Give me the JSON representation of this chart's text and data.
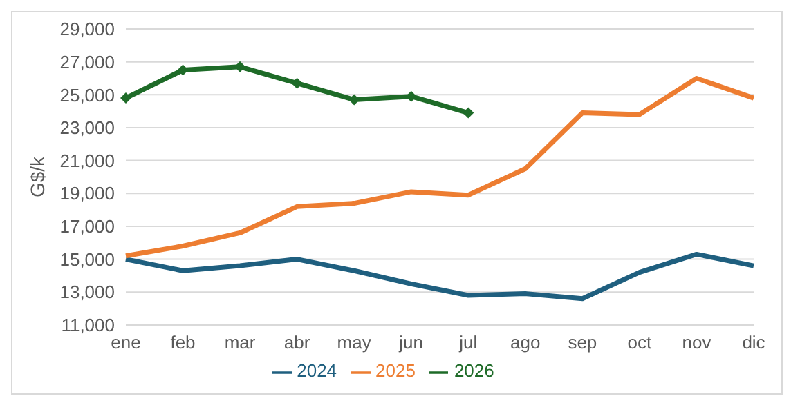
{
  "chart_data": {
    "type": "line",
    "ylabel": "G$/k",
    "categories": [
      "ene",
      "feb",
      "mar",
      "abr",
      "may",
      "jun",
      "jul",
      "ago",
      "sep",
      "oct",
      "nov",
      "dic"
    ],
    "series": [
      {
        "name": "2024",
        "color": "#1f5f7f",
        "values": [
          15000,
          14300,
          14600,
          15000,
          14300,
          13500,
          12800,
          12900,
          12600,
          14200,
          15300,
          14600
        ]
      },
      {
        "name": "2025",
        "color": "#ed7d31",
        "values": [
          15200,
          15800,
          16600,
          18200,
          18400,
          19100,
          18900,
          20500,
          23900,
          23800,
          26000,
          24800
        ]
      },
      {
        "name": "2026",
        "color": "#1e6b28",
        "marker": "diamond",
        "values": [
          24800,
          26500,
          26700,
          25700,
          24700,
          24900,
          23900,
          null,
          null,
          null,
          null,
          null
        ]
      }
    ],
    "ylim": [
      11000,
      29000
    ],
    "yticks": [
      {
        "value": 11000,
        "label": "11,000"
      },
      {
        "value": 13000,
        "label": "13,000"
      },
      {
        "value": 15000,
        "label": "15,000"
      },
      {
        "value": 17000,
        "label": "17,000"
      },
      {
        "value": 19000,
        "label": "19,000"
      },
      {
        "value": 21000,
        "label": "21,000"
      },
      {
        "value": 23000,
        "label": "23,000"
      },
      {
        "value": 25000,
        "label": "25,000"
      },
      {
        "value": 27000,
        "label": "27,000"
      },
      {
        "value": 29000,
        "label": "29,000"
      }
    ],
    "grid": "y",
    "legend": "bottom"
  }
}
